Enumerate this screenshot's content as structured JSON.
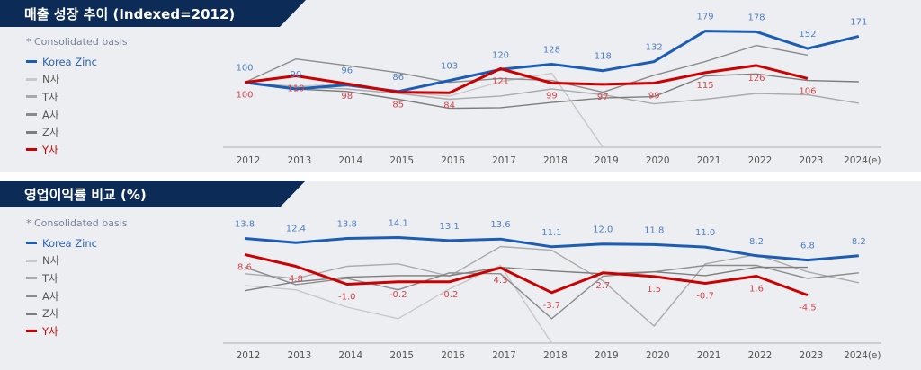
{
  "charts": [
    {
      "title": "매출 성장 추이 (Indexed=2012)",
      "note": "* Consolidated basis",
      "legend": [
        {
          "name": "Korea Zinc",
          "color": "#1b5db5"
        },
        {
          "name": "N사",
          "color": "#c8c8c8"
        },
        {
          "name": "T사",
          "color": "#a9a9a9"
        },
        {
          "name": "A사",
          "color": "#8a8a8a"
        },
        {
          "name": "Z사",
          "color": "#7d7d7d"
        },
        {
          "name": "Y사",
          "color": "#cc0000"
        }
      ]
    },
    {
      "title": "영업이익률 비교 (%)",
      "note": "* Consolidated basis",
      "legend": [
        {
          "name": "Korea Zinc",
          "color": "#1b5db5"
        },
        {
          "name": "N사",
          "color": "#c8c8c8"
        },
        {
          "name": "T사",
          "color": "#a9a9a9"
        },
        {
          "name": "A사",
          "color": "#8a8a8a"
        },
        {
          "name": "Z사",
          "color": "#7d7d7d"
        },
        {
          "name": "Y사",
          "color": "#cc0000"
        }
      ]
    }
  ],
  "chart_data": [
    {
      "type": "line",
      "title": "매출 성장 추이 (Indexed=2012)",
      "categories": [
        "2012",
        "2013",
        "2014",
        "2015",
        "2016",
        "2017",
        "2018",
        "2019",
        "2020",
        "2021",
        "2022",
        "2023",
        "2024(e)"
      ],
      "ylim": [
        0,
        220
      ],
      "grid": false,
      "legend_position": "left",
      "series": [
        {
          "name": "N사",
          "color": "#c8c8c8",
          "values": [
            100,
            94,
            98,
            85,
            79,
            101,
            114,
            0,
            null,
            null,
            null,
            null,
            null
          ],
          "labels": false
        },
        {
          "name": "T사",
          "color": "#ababab",
          "values": [
            100,
            93,
            90,
            83,
            74,
            79,
            90,
            81,
            67,
            74,
            83,
            81,
            68
          ],
          "labels": false
        },
        {
          "name": "A사",
          "color": "#8c8c8c",
          "values": [
            100,
            136,
            126,
            115,
            100,
            106,
            103,
            85,
            111,
            132,
            157,
            142,
            null
          ],
          "labels": false
        },
        {
          "name": "Z사",
          "color": "#7d7d7d",
          "values": [
            100,
            90,
            86,
            74,
            60,
            61,
            69,
            76,
            78,
            110,
            113,
            103,
            101
          ],
          "labels": false
        },
        {
          "name": "Korea Zinc",
          "color": "#1b5db5",
          "values": [
            100,
            90,
            96,
            86,
            103,
            120,
            128,
            118,
            132,
            179,
            178,
            152,
            171
          ],
          "labels": true,
          "label_color": "#4f80c6"
        },
        {
          "name": "Y사",
          "color": "#cc0000",
          "values": [
            100,
            110,
            98,
            85,
            84,
            121,
            99,
            97,
            99,
            115,
            126,
            106,
            null
          ],
          "labels": true,
          "label_color": "#d6454c"
        }
      ]
    },
    {
      "type": "line",
      "title": "영업이익률 비교 (%)",
      "categories": [
        "2012",
        "2013",
        "2014",
        "2015",
        "2016",
        "2017",
        "2018",
        "2019",
        "2020",
        "2021",
        "2022",
        "2023",
        "2024(e)"
      ],
      "ylim": [
        -20,
        27
      ],
      "grid": false,
      "legend_position": "left",
      "series": [
        {
          "name": "N사",
          "color": "#c8c8c8",
          "values": [
            -1.4,
            -2.8,
            -8.4,
            -12.1,
            -2.5,
            5.1,
            -20,
            null,
            null,
            null,
            null,
            null,
            null
          ],
          "labels": false
        },
        {
          "name": "T사",
          "color": "#ababab",
          "values": [
            2.4,
            0.9,
            4.8,
            5.6,
            1.6,
            11.2,
            10.0,
            0.1,
            -14.5,
            5.6,
            8.6,
            3.0,
            -0.5
          ],
          "labels": false
        },
        {
          "name": "A사",
          "color": "#8c8c8c",
          "values": [
            4.5,
            -1.1,
            0.9,
            -2.8,
            2.7,
            2.4,
            -12.1,
            1.6,
            3.0,
            5.1,
            5.1,
            0.9,
            2.7
          ],
          "labels": false
        },
        {
          "name": "Z사",
          "color": "#7d7d7d",
          "values": [
            -3.1,
            -0.2,
            1.3,
            1.8,
            1.8,
            4.5,
            3.3,
            2.4,
            3.0,
            1.8,
            4.5,
            4.5,
            null
          ],
          "labels": false
        },
        {
          "name": "Korea Zinc",
          "color": "#1b5db5",
          "values": [
            13.8,
            12.4,
            13.8,
            14.1,
            13.1,
            13.6,
            11.1,
            12.0,
            11.8,
            11.0,
            8.2,
            6.8,
            8.2
          ],
          "labels": true,
          "label_color": "#4f80c6"
        },
        {
          "name": "Y사",
          "color": "#cc0000",
          "values": [
            8.6,
            4.8,
            -1.0,
            -0.2,
            -0.2,
            4.3,
            -3.7,
            2.7,
            1.5,
            -0.7,
            1.6,
            -4.5,
            null
          ],
          "labels": true,
          "label_color": "#d6454c"
        }
      ]
    }
  ]
}
